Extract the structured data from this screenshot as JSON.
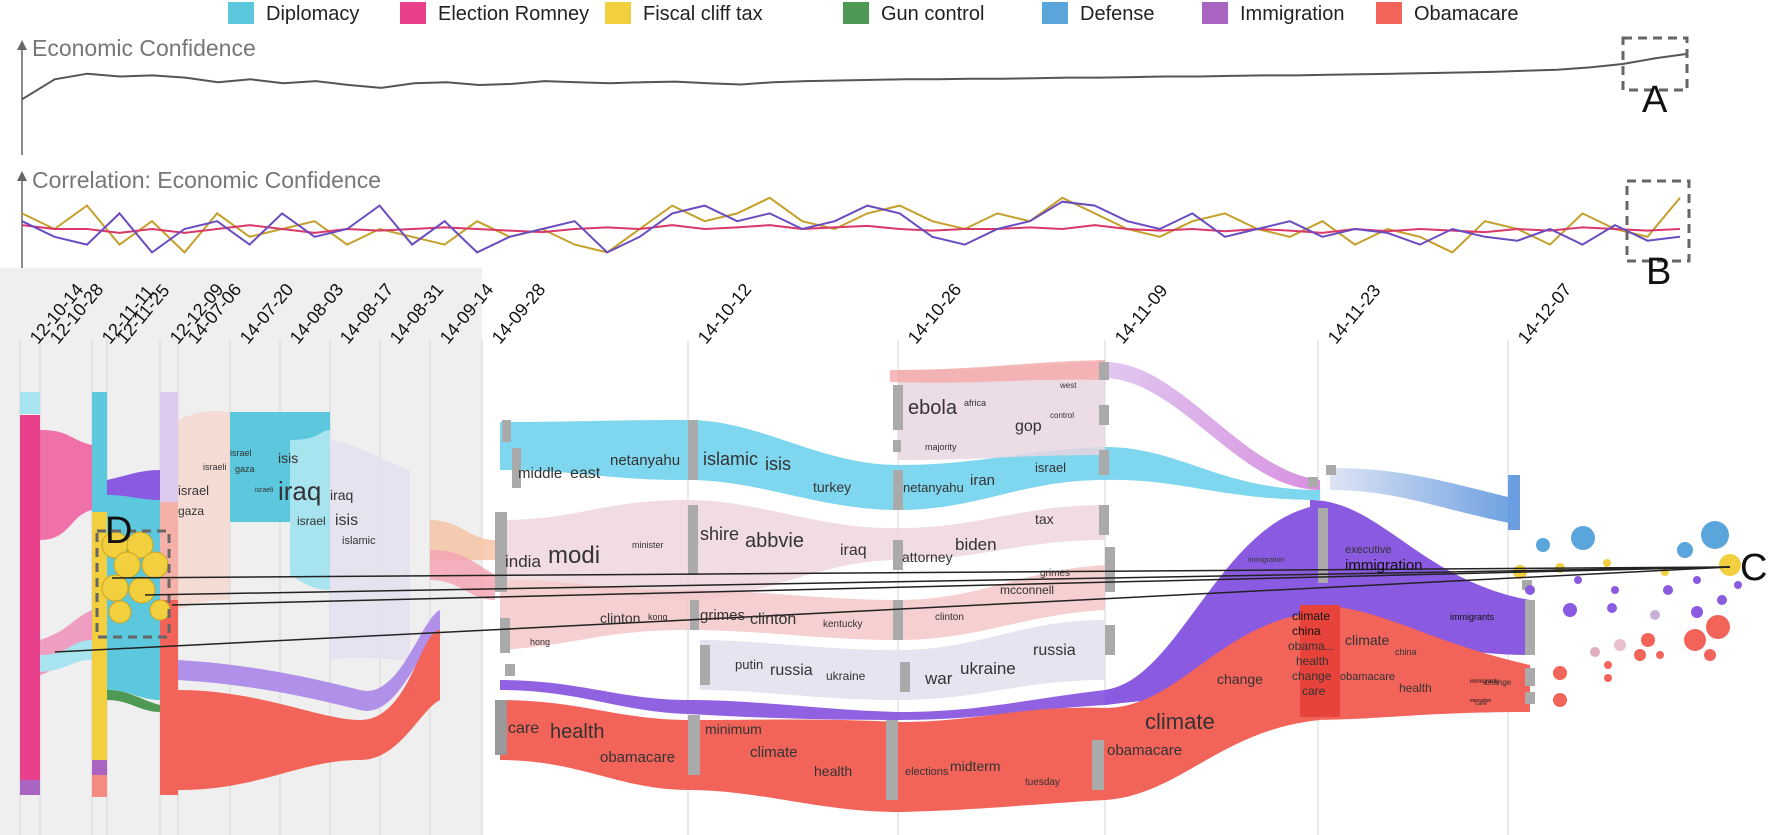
{
  "legend": [
    {
      "label": "Diplomacy",
      "color": "#5bc8dd"
    },
    {
      "label": "Election Romney",
      "color": "#e8408a"
    },
    {
      "label": "Fiscal cliff tax",
      "color": "#f2cf3e"
    },
    {
      "label": "Gun control",
      "color": "#4e9a55"
    },
    {
      "label": "Defense",
      "color": "#5aa5dc"
    },
    {
      "label": "Immigration",
      "color": "#a864c0"
    },
    {
      "label": "Obamacare",
      "color": "#f2645a"
    }
  ],
  "panels": {
    "economic": {
      "title": "Economic Confidence"
    },
    "correlation": {
      "title": "Correlation: Economic Confidence"
    }
  },
  "annotations": {
    "a": "A",
    "b": "B",
    "c": "C",
    "d": "D"
  },
  "chart_data": [
    {
      "type": "line",
      "title": "Economic Confidence",
      "series": [
        {
          "color": "#555555",
          "values": [
            0.1,
            0.45,
            0.55,
            0.5,
            0.52,
            0.48,
            0.4,
            0.45,
            0.38,
            0.42,
            0.35,
            0.3,
            0.38,
            0.4,
            0.35,
            0.37,
            0.42,
            0.4,
            0.38,
            0.4,
            0.41,
            0.38,
            0.36,
            0.4,
            0.42,
            0.43,
            0.44,
            0.45,
            0.45,
            0.46,
            0.46,
            0.47,
            0.48,
            0.48,
            0.49,
            0.5,
            0.5,
            0.51,
            0.52,
            0.52,
            0.53,
            0.54,
            0.55,
            0.56,
            0.57,
            0.58,
            0.6,
            0.62,
            0.66,
            0.72,
            0.82,
            0.9
          ]
        }
      ]
    },
    {
      "type": "line",
      "title": "Correlation: Economic Confidence",
      "series": [
        {
          "color": "#c4a02a",
          "values": [
            0.7,
            0.5,
            0.8,
            0.3,
            0.6,
            0.2,
            0.7,
            0.4,
            0.5,
            0.6,
            0.3,
            0.5,
            0.4,
            0.3,
            0.6,
            0.4,
            0.5,
            0.3,
            0.2,
            0.5,
            0.8,
            0.6,
            0.7,
            0.9,
            0.6,
            0.5,
            0.7,
            0.8,
            0.6,
            0.5,
            0.7,
            0.6,
            0.9,
            0.7,
            0.5,
            0.4,
            0.6,
            0.7,
            0.5,
            0.4,
            0.6,
            0.3,
            0.5,
            0.4,
            0.2,
            0.6,
            0.5,
            0.3,
            0.7,
            0.5,
            0.4,
            0.9
          ]
        },
        {
          "color": "#d8386a",
          "values": [
            0.55,
            0.5,
            0.5,
            0.45,
            0.5,
            0.45,
            0.5,
            0.55,
            0.5,
            0.45,
            0.5,
            0.48,
            0.5,
            0.52,
            0.5,
            0.48,
            0.46,
            0.5,
            0.52,
            0.5,
            0.55,
            0.5,
            0.52,
            0.55,
            0.5,
            0.52,
            0.54,
            0.5,
            0.48,
            0.5,
            0.5,
            0.52,
            0.5,
            0.55,
            0.5,
            0.48,
            0.5,
            0.47,
            0.5,
            0.48,
            0.45,
            0.5,
            0.47,
            0.5,
            0.48,
            0.46,
            0.5,
            0.48,
            0.52,
            0.5,
            0.48,
            0.5
          ]
        },
        {
          "color": "#6a4cc0",
          "values": [
            0.6,
            0.4,
            0.3,
            0.7,
            0.2,
            0.5,
            0.6,
            0.3,
            0.7,
            0.4,
            0.5,
            0.8,
            0.3,
            0.6,
            0.2,
            0.4,
            0.5,
            0.6,
            0.2,
            0.4,
            0.7,
            0.8,
            0.6,
            0.7,
            0.5,
            0.6,
            0.8,
            0.7,
            0.4,
            0.3,
            0.5,
            0.6,
            0.85,
            0.8,
            0.6,
            0.5,
            0.7,
            0.4,
            0.5,
            0.6,
            0.4,
            0.5,
            0.45,
            0.3,
            0.5,
            0.4,
            0.35,
            0.5,
            0.3,
            0.55,
            0.35,
            0.4
          ]
        }
      ]
    },
    {
      "type": "streamgraph",
      "x_tick_labels": [
        "12-10-14",
        "12-10-28",
        "12-11-11",
        "12-11-25",
        "12-12-09",
        "14-07-06",
        "14-07-20",
        "14-08-03",
        "14-08-17",
        "14-08-31",
        "14-09-14",
        "14-09-28",
        "14-10-12",
        "14-10-26",
        "14-11-09",
        "14-11-23",
        "14-12-07"
      ],
      "keywords": [
        {
          "text": "israel",
          "size": 13
        },
        {
          "text": "gaza",
          "size": 12
        },
        {
          "text": "isis",
          "size": 14
        },
        {
          "text": "israeli",
          "size": 9
        },
        {
          "text": "israel",
          "size": 9
        },
        {
          "text": "gaza",
          "size": 9
        },
        {
          "text": "israeli",
          "size": 7
        },
        {
          "text": "iraq",
          "size": 26
        },
        {
          "text": "israel",
          "size": 12
        },
        {
          "text": "iraq",
          "size": 14
        },
        {
          "text": "isis",
          "size": 16
        },
        {
          "text": "islamic",
          "size": 11
        },
        {
          "text": "middle",
          "size": 15
        },
        {
          "text": "east",
          "size": 16
        },
        {
          "text": "netanyahu",
          "size": 15
        },
        {
          "text": "islamic",
          "size": 18
        },
        {
          "text": "isis",
          "size": 18
        },
        {
          "text": "turkey",
          "size": 14
        },
        {
          "text": "netanyahu",
          "size": 13
        },
        {
          "text": "iran",
          "size": 15
        },
        {
          "text": "israel",
          "size": 13
        },
        {
          "text": "ebola",
          "size": 20
        },
        {
          "text": "africa",
          "size": 9
        },
        {
          "text": "west",
          "size": 8
        },
        {
          "text": "gop",
          "size": 16
        },
        {
          "text": "control",
          "size": 8
        },
        {
          "text": "majority",
          "size": 9
        },
        {
          "text": "india",
          "size": 17
        },
        {
          "text": "modi",
          "size": 24
        },
        {
          "text": "minister",
          "size": 9
        },
        {
          "text": "shire",
          "size": 18
        },
        {
          "text": "abbvie",
          "size": 20
        },
        {
          "text": "iraq",
          "size": 16
        },
        {
          "text": "attorney",
          "size": 14
        },
        {
          "text": "biden",
          "size": 17
        },
        {
          "text": "tax",
          "size": 14
        },
        {
          "text": "grimes",
          "size": 10
        },
        {
          "text": "mcconnell",
          "size": 12
        },
        {
          "text": "clinton",
          "size": 14
        },
        {
          "text": "kong",
          "size": 9
        },
        {
          "text": "grimes",
          "size": 15
        },
        {
          "text": "clinton",
          "size": 16
        },
        {
          "text": "kentucky",
          "size": 10
        },
        {
          "text": "clinton",
          "size": 10
        },
        {
          "text": "hong",
          "size": 9
        },
        {
          "text": "putin",
          "size": 13
        },
        {
          "text": "russia",
          "size": 16
        },
        {
          "text": "ukraine",
          "size": 12
        },
        {
          "text": "war",
          "size": 17
        },
        {
          "text": "ukraine",
          "size": 17
        },
        {
          "text": "russia",
          "size": 16
        },
        {
          "text": "care",
          "size": 16
        },
        {
          "text": "health",
          "size": 20
        },
        {
          "text": "obamacare",
          "size": 15
        },
        {
          "text": "minimum",
          "size": 14
        },
        {
          "text": "climate",
          "size": 15
        },
        {
          "text": "health",
          "size": 14
        },
        {
          "text": "elections",
          "size": 11
        },
        {
          "text": "midterm",
          "size": 14
        },
        {
          "text": "tuesday",
          "size": 10
        },
        {
          "text": "obamacare",
          "size": 15
        },
        {
          "text": "climate",
          "size": 22
        },
        {
          "text": "change",
          "size": 14
        },
        {
          "text": "immigration",
          "size": 7
        },
        {
          "text": "executive",
          "size": 11
        },
        {
          "text": "immigration",
          "size": 15
        },
        {
          "text": "immigrants",
          "size": 9
        },
        {
          "text": "immigrants",
          "size": 6
        },
        {
          "text": "executive",
          "size": 5
        },
        {
          "text": "climate",
          "size": 12
        },
        {
          "text": "china",
          "size": 12
        },
        {
          "text": "obama...",
          "size": 12
        },
        {
          "text": "health",
          "size": 12
        },
        {
          "text": "change",
          "size": 12
        },
        {
          "text": "care",
          "size": 12
        },
        {
          "text": "climate",
          "size": 14
        },
        {
          "text": "china",
          "size": 9
        },
        {
          "text": "obamacare",
          "size": 11
        },
        {
          "text": "health",
          "size": 12
        },
        {
          "text": "change",
          "size": 8
        },
        {
          "text": "care",
          "size": 6
        }
      ]
    }
  ]
}
